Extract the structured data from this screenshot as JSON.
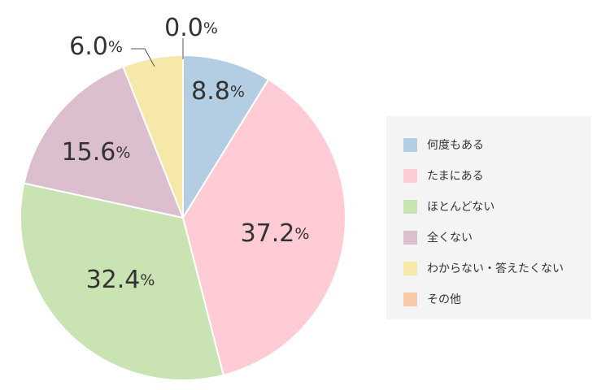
{
  "chart_data": {
    "type": "pie",
    "start": "top",
    "direction": "clockwise",
    "categories": [
      "何度もある",
      "たまにある",
      "ほとんどない",
      "全くない",
      "わからない・答えたくない",
      "その他"
    ],
    "values": [
      8.8,
      37.2,
      32.4,
      15.6,
      6.0,
      0.0
    ],
    "value_labels": [
      "8.8",
      "37.2",
      "32.4",
      "15.6",
      "6.0",
      "0.0"
    ],
    "unit": "%",
    "colors": [
      "#b3cde3",
      "#ffccd5",
      "#c9e3b3",
      "#dcbfcf",
      "#f5e8a8",
      "#f7c9a8"
    ],
    "legend_position": "right"
  }
}
